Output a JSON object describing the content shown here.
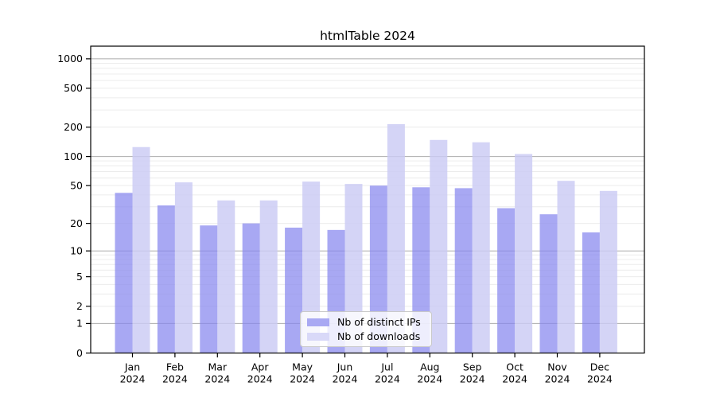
{
  "title": "htmlTable 2024",
  "chart_data": {
    "type": "bar",
    "title": "htmlTable 2024",
    "categories": [
      "Jan\n2024",
      "Feb\n2024",
      "Mar\n2024",
      "Apr\n2024",
      "May\n2024",
      "Jun\n2024",
      "Jul\n2024",
      "Aug\n2024",
      "Sep\n2024",
      "Oct\n2024",
      "Nov\n2024",
      "Dec\n2024"
    ],
    "series": [
      {
        "name": "Nb of distinct IPs",
        "values": [
          42,
          31,
          19,
          20,
          18,
          17,
          50,
          48,
          47,
          29,
          25,
          16
        ],
        "fill": "rgba(134,134,238,0.72)",
        "legend_color": "#a9a9f3"
      },
      {
        "name": "Nb of downloads",
        "values": [
          125,
          54,
          35,
          35,
          55,
          52,
          215,
          148,
          140,
          106,
          56,
          44
        ],
        "fill": "rgba(202,202,244,0.82)",
        "legend_color": "#d9d9f8"
      }
    ],
    "xlabel": "",
    "ylabel": "",
    "yticks": [
      0,
      1,
      2,
      5,
      10,
      20,
      50,
      100,
      200,
      500,
      1000
    ],
    "major_grid_values": [
      1,
      10,
      100,
      1000
    ],
    "scale": "log1p",
    "ylim": [
      0,
      1000
    ],
    "grid": true,
    "legend_position": "lower center"
  },
  "colors": {
    "bar_distinct_ips": "#a9a9f3",
    "bar_downloads": "#d9d9f8",
    "grid_major": "#ababab",
    "grid_minor": "#ececec",
    "axis": "#000000",
    "text": "#000000"
  }
}
